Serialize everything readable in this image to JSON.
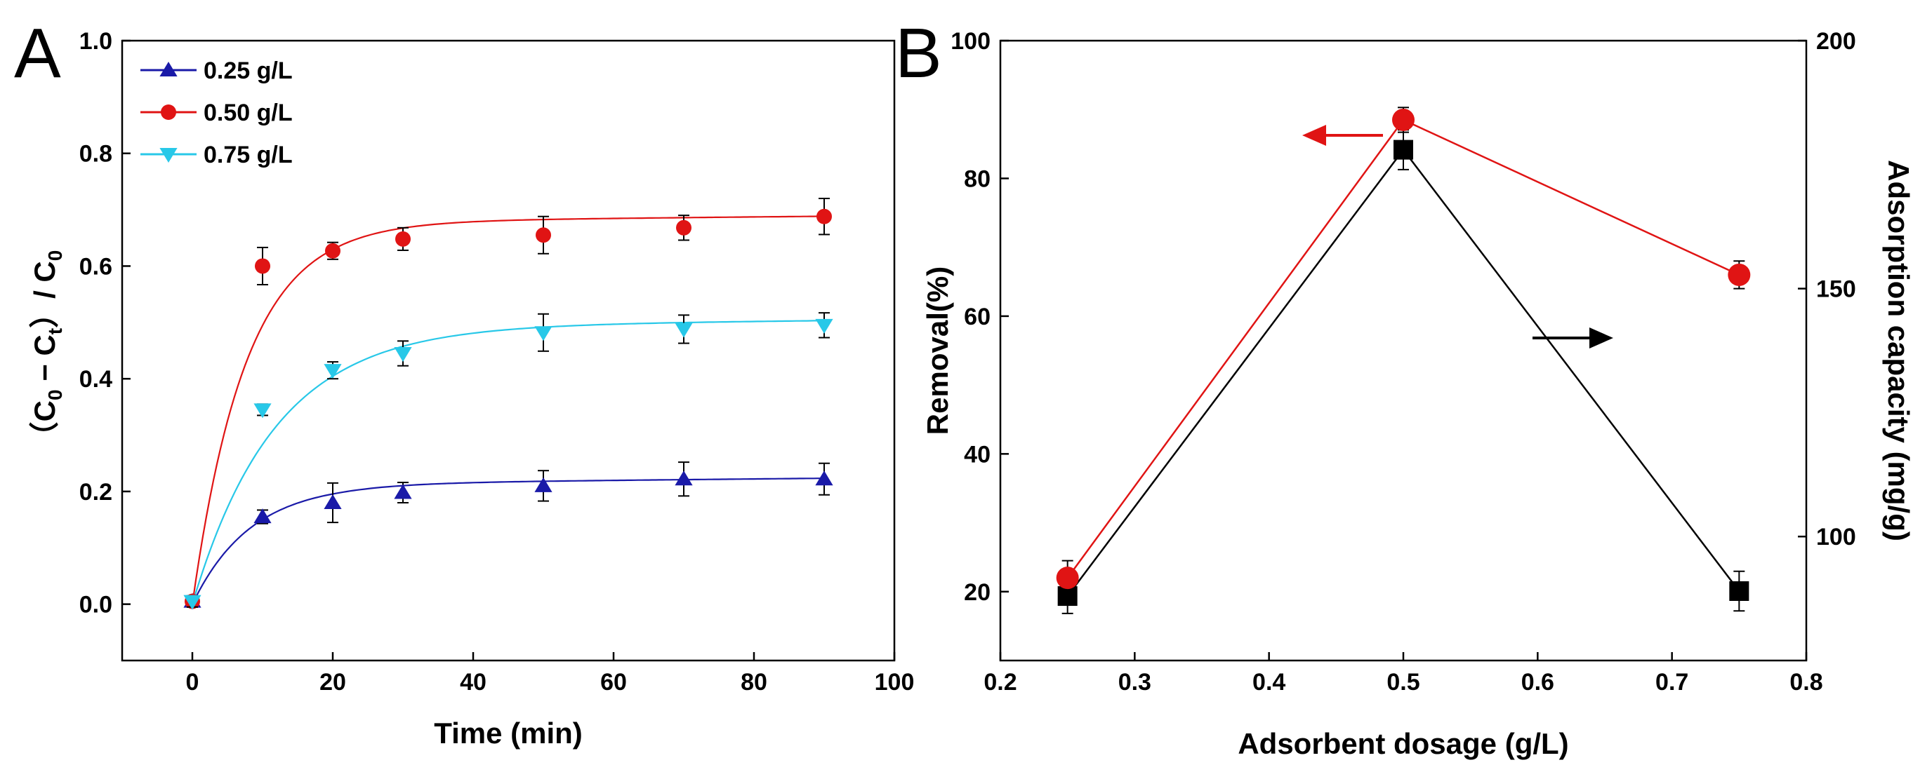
{
  "colors": {
    "blue": "#1a1aa8",
    "red": "#e01414",
    "cyan": "#28c8e8",
    "dark_red_line": "#b02020",
    "black": "#000000",
    "axis": "#000000"
  },
  "chart_data": [
    {
      "panel": "A",
      "type": "scatter",
      "xlabel": "Time (min)",
      "ylabel_main": "（C",
      "ylabel_sub0": "0",
      "ylabel_dash": " − C",
      "ylabel_subt": "t",
      "ylabel_close": "）/ C",
      "ylabel_sub0b": "0",
      "xlim": [
        -10,
        100
      ],
      "ylim": [
        -0.1,
        1.0
      ],
      "xticks": [
        0,
        20,
        40,
        60,
        80,
        100
      ],
      "yticks": [
        0.0,
        0.2,
        0.4,
        0.6,
        0.8,
        1.0
      ],
      "xtick_labels": [
        "0",
        "20",
        "40",
        "60",
        "80",
        "100"
      ],
      "ytick_labels": [
        "0.0",
        "0.2",
        "0.4",
        "0.6",
        "0.8",
        "1.0"
      ],
      "legend_position": "top-left",
      "series": [
        {
          "name": "0.25 g/L",
          "marker": "triangle-up",
          "color": "#1a1aa8",
          "x": [
            0,
            10,
            20,
            30,
            50,
            70,
            90
          ],
          "y": [
            0.005,
            0.155,
            0.18,
            0.198,
            0.21,
            0.222,
            0.222
          ],
          "err": [
            0.01,
            0.012,
            0.035,
            0.018,
            0.027,
            0.03,
            0.028
          ],
          "fit_asymptote": 0.215,
          "fit_k": 0.12
        },
        {
          "name": "0.50 g/L",
          "marker": "circle",
          "color": "#e01414",
          "x": [
            0,
            10,
            20,
            30,
            50,
            70,
            90
          ],
          "y": [
            0.005,
            0.6,
            0.627,
            0.648,
            0.655,
            0.668,
            0.688
          ],
          "err": [
            0.01,
            0.033,
            0.015,
            0.02,
            0.033,
            0.022,
            0.032
          ],
          "fit_asymptote": 0.68,
          "fit_k": 0.13
        },
        {
          "name": "0.75 g/L",
          "marker": "triangle-down",
          "color": "#28c8e8",
          "x": [
            0,
            10,
            20,
            30,
            50,
            70,
            90
          ],
          "y": [
            0.005,
            0.345,
            0.415,
            0.445,
            0.482,
            0.488,
            0.495
          ],
          "err": [
            0.01,
            0.01,
            0.015,
            0.022,
            0.033,
            0.025,
            0.022
          ],
          "fit_asymptote": 0.495,
          "fit_k": 0.085
        }
      ]
    },
    {
      "panel": "B",
      "type": "line",
      "xlabel": "Adsorbent dosage (g/L)",
      "ylabel": "Removal(%)",
      "ylabel_right": "Adsorption capacity (mg/g)",
      "xlim": [
        0.2,
        0.8
      ],
      "ylim": [
        10,
        100
      ],
      "ylim_right": [
        75,
        200
      ],
      "xticks": [
        0.2,
        0.3,
        0.4,
        0.5,
        0.6,
        0.7,
        0.8
      ],
      "xtick_labels": [
        "0.2",
        "0.3",
        "0.4",
        "0.5",
        "0.6",
        "0.7",
        "0.8"
      ],
      "yticks": [
        20,
        40,
        60,
        80,
        100
      ],
      "ytick_labels": [
        "20",
        "40",
        "60",
        "80",
        "100"
      ],
      "yticks_right": [
        100,
        150,
        200
      ],
      "ytick_labels_right": [
        "100",
        "150",
        "200"
      ],
      "series": [
        {
          "axis": "left",
          "marker": "circle",
          "color": "#e01414",
          "x": [
            0.25,
            0.5,
            0.75
          ],
          "y": [
            22,
            88.5,
            66
          ],
          "err": [
            2.5,
            1.8,
            2.0
          ]
        },
        {
          "axis": "right",
          "marker": "square",
          "color": "#000000",
          "x": [
            0.25,
            0.5,
            0.75
          ],
          "y": [
            88,
            178,
            89
          ],
          "err": [
            3.5,
            4.0,
            4.0
          ]
        }
      ],
      "arrows": [
        {
          "direction": "left",
          "points_to": "left-axis",
          "color": "#e01414"
        },
        {
          "direction": "right",
          "points_to": "right-axis",
          "color": "#000000"
        }
      ]
    }
  ]
}
